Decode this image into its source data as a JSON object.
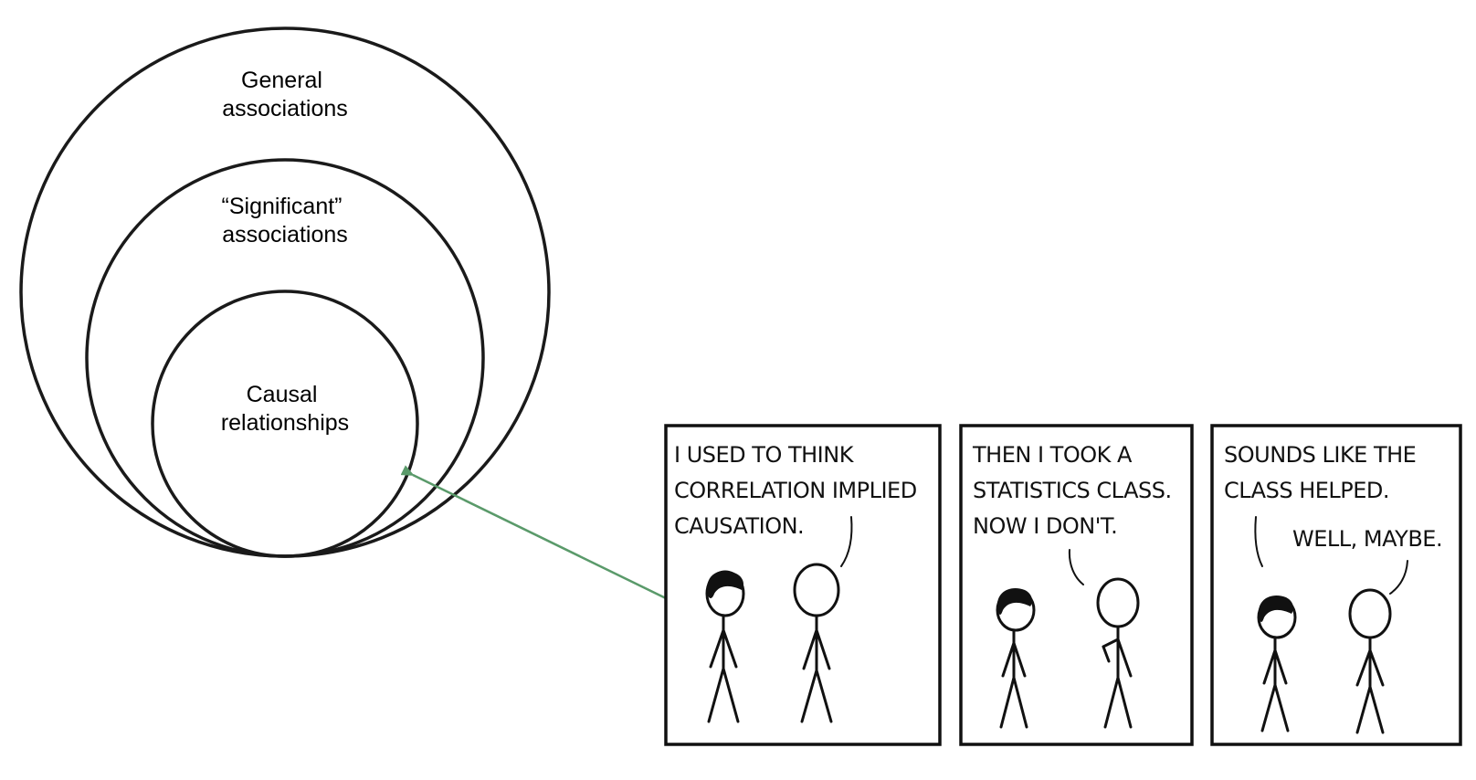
{
  "venn": {
    "outer_label_line1": "General",
    "outer_label_line2": "associations",
    "middle_label_line1": "“Significant”",
    "middle_label_line2": "associations",
    "inner_label_line1": "Causal",
    "inner_label_line2": "relationships",
    "stroke_color": "#1a1a1a"
  },
  "arrow": {
    "color": "#5a9a6a"
  },
  "comic": {
    "panel1": {
      "line1": "I USED TO THINK",
      "line2": "CORRELATION IMPLIED",
      "line3": "CAUSATION."
    },
    "panel2": {
      "line1": "THEN I TOOK A",
      "line2": "STATISTICS CLASS.",
      "line3": "NOW I DON'T."
    },
    "panel3": {
      "line1": "SOUNDS LIKE THE",
      "line2": "CLASS HELPED.",
      "reply": "WELL, MAYBE."
    }
  }
}
